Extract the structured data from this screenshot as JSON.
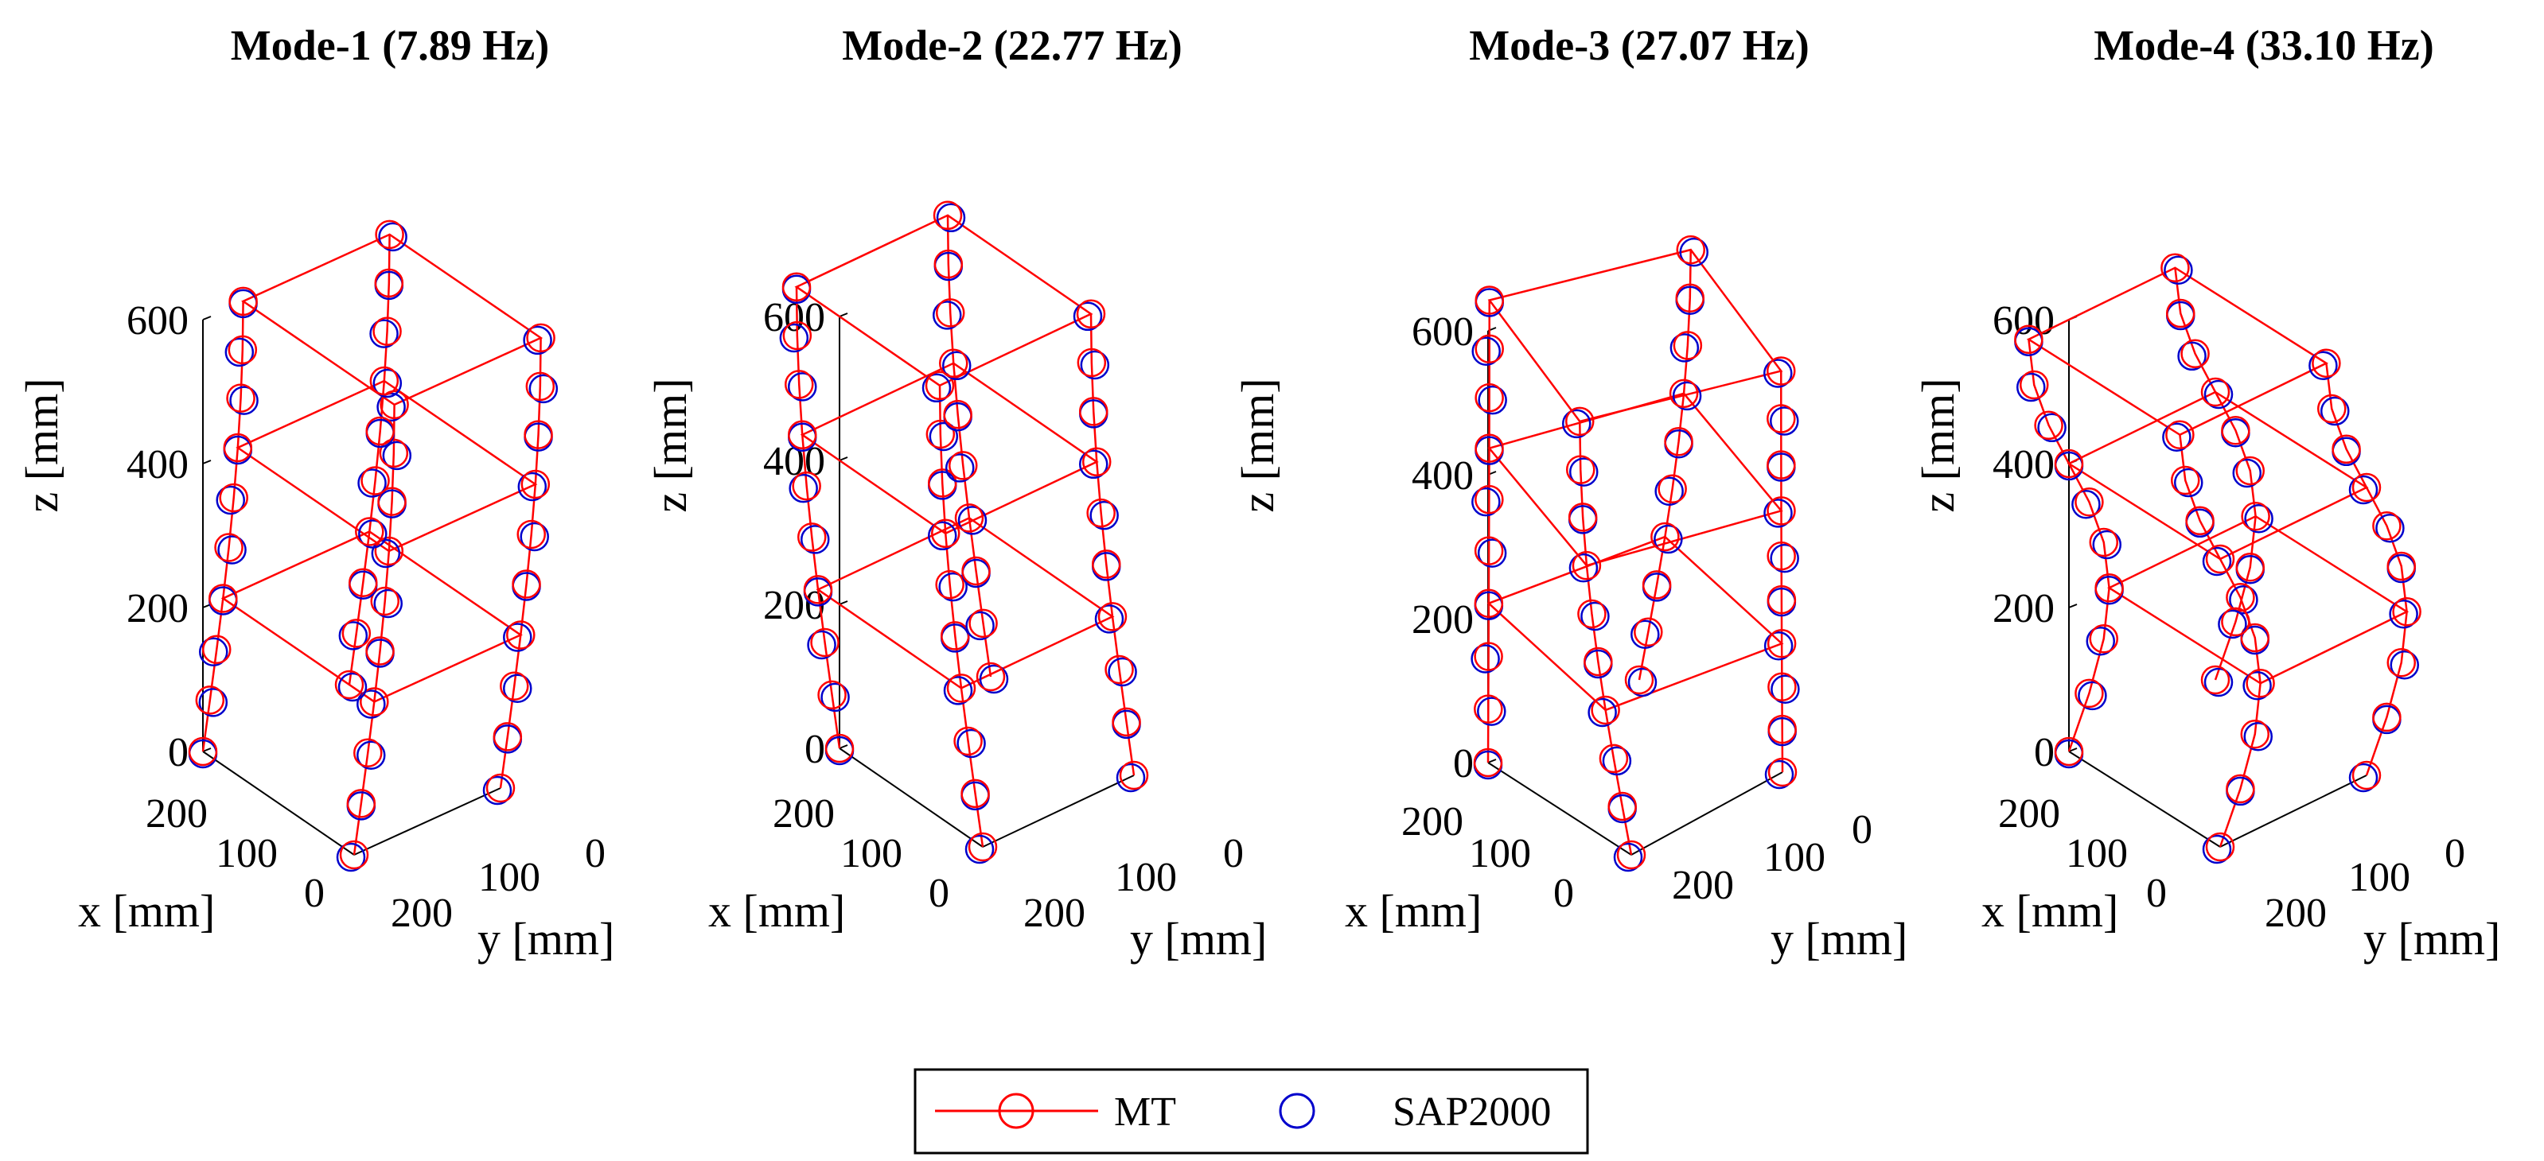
{
  "chart_data": {
    "type": "scatter",
    "subtype": "3d-mode-shapes",
    "legend": {
      "placement": "bottom-center",
      "entries": [
        {
          "label": "MT",
          "color": "#ff0000",
          "marker": "circle-line"
        },
        {
          "label": "SAP2000",
          "color": "#0000cc",
          "marker": "circle"
        }
      ]
    },
    "colors": {
      "mt": "#ff0000",
      "sap": "#0000cc",
      "axis": "#000000"
    },
    "panels": [
      {
        "title": "Mode-1 (7.89 Hz)",
        "mode": 1,
        "frequency_hz": 7.89,
        "xlabel": "x [mm]",
        "ylabel": "y [mm]",
        "zlabel": "z [mm]",
        "z_ticks": [
          "0",
          "200",
          "400",
          "600"
        ],
        "x_ticks": [
          "200",
          "100",
          "0"
        ],
        "y_ticks": [
          "200",
          "100",
          "0"
        ],
        "zlim": [
          0,
          600
        ],
        "view": {
          "s_x": 0.16,
          "s_y": 0.13,
          "s_z": 0.185
        }
      },
      {
        "title": "Mode-2 (22.77 Hz)",
        "mode": 2,
        "frequency_hz": 22.77,
        "xlabel": "x [mm]",
        "ylabel": "y [mm]",
        "zlabel": "z [mm]",
        "z_ticks": [
          "0",
          "200",
          "400",
          "600"
        ],
        "x_ticks": [
          "200",
          "100",
          "0"
        ],
        "y_ticks": [
          "200",
          "100",
          "0"
        ],
        "zlim": [
          0,
          600
        ],
        "view": {
          "s_x": 0.2,
          "s_y": 0.15,
          "s_z": 0.22
        }
      },
      {
        "title": "Mode-3 (27.07 Hz)",
        "mode": 3,
        "frequency_hz": 27.07,
        "xlabel": "x [mm]",
        "ylabel": "y [mm]",
        "zlabel": "z [mm]",
        "z_ticks": [
          "0",
          "200",
          "400",
          "600"
        ],
        "x_ticks": [
          "200",
          "100",
          "0"
        ],
        "y_ticks": [
          "200",
          "100",
          "0"
        ],
        "zlim": [
          0,
          600
        ],
        "view": {
          "s_x": 0.12,
          "s_y": 0.14,
          "s_z": 0.17
        }
      },
      {
        "title": "Mode-4 (33.10 Hz)",
        "mode": 4,
        "frequency_hz": 33.1,
        "xlabel": "x [mm]",
        "ylabel": "y [mm]",
        "zlabel": "z [mm]",
        "z_ticks": [
          "0",
          "200",
          "400",
          "600"
        ],
        "x_ticks": [
          "200",
          "100",
          "0"
        ],
        "y_ticks": [
          "200",
          "100",
          "0"
        ],
        "zlim": [
          0,
          600
        ],
        "view": {
          "s_x": 0.2,
          "s_y": 0.2,
          "s_z": 0.2
        }
      }
    ]
  }
}
